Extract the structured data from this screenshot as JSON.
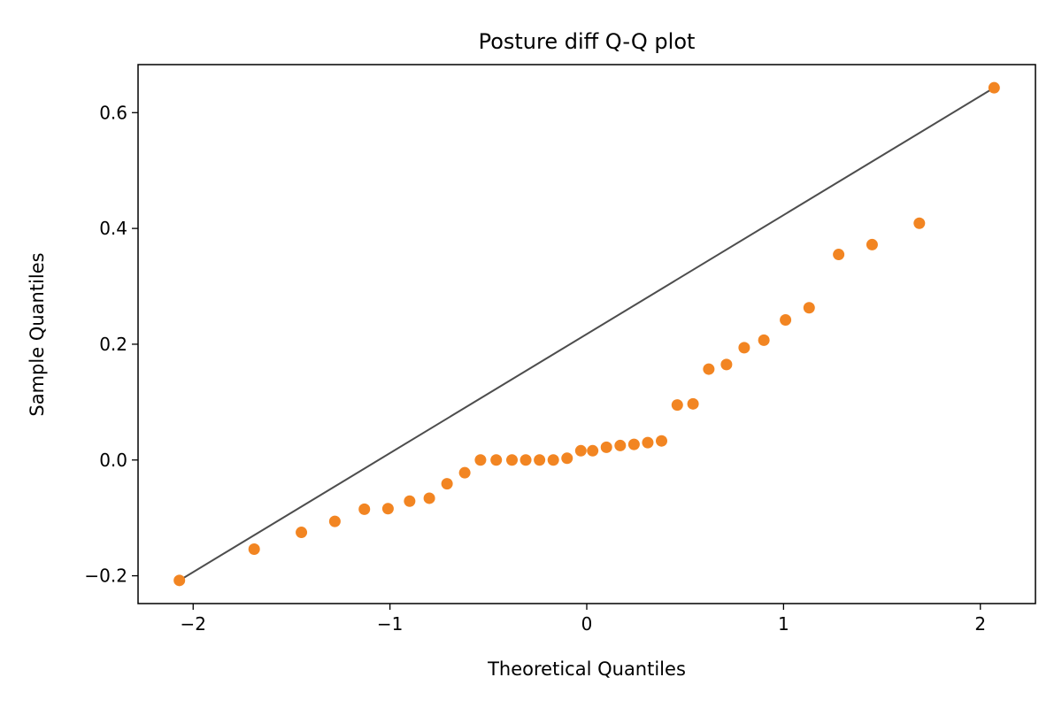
{
  "chart_data": {
    "type": "scatter",
    "title": "Posture diff Q-Q plot",
    "xlabel": "Theoretical Quantiles",
    "ylabel": "Sample Quantiles",
    "xlim": [
      -2.28,
      2.28
    ],
    "ylim": [
      -0.248,
      0.683
    ],
    "xticks": [
      -2,
      -1,
      0,
      1,
      2
    ],
    "xtick_labels": [
      "−2",
      "−1",
      "0",
      "1",
      "2"
    ],
    "yticks": [
      -0.2,
      0.0,
      0.2,
      0.4,
      0.6
    ],
    "ytick_labels": [
      "−0.2",
      "0.0",
      "0.2",
      "0.4",
      "0.6"
    ],
    "colors": {
      "points": "#f28522",
      "line": "#4d4d4d"
    },
    "reference_line": {
      "x": [
        -2.07,
        2.07
      ],
      "y": [
        -0.208,
        0.643
      ]
    },
    "series": [
      {
        "name": "Posture diff",
        "x": [
          -2.07,
          -1.69,
          -1.45,
          -1.28,
          -1.13,
          -1.01,
          -0.9,
          -0.8,
          -0.71,
          -0.62,
          -0.54,
          -0.46,
          -0.38,
          -0.31,
          -0.24,
          -0.17,
          -0.1,
          -0.03,
          0.03,
          0.1,
          0.17,
          0.24,
          0.31,
          0.38,
          0.46,
          0.54,
          0.62,
          0.71,
          0.8,
          0.9,
          1.01,
          1.13,
          1.28,
          1.45,
          1.69,
          2.07
        ],
        "y": [
          -0.208,
          -0.154,
          -0.125,
          -0.106,
          -0.085,
          -0.084,
          -0.071,
          -0.066,
          -0.041,
          -0.022,
          0.0,
          0.0,
          0.0,
          0.0,
          0.0,
          0.0,
          0.003,
          0.016,
          0.016,
          0.022,
          0.025,
          0.027,
          0.03,
          0.033,
          0.095,
          0.097,
          0.157,
          0.165,
          0.194,
          0.207,
          0.242,
          0.263,
          0.355,
          0.372,
          0.409,
          0.643
        ]
      }
    ]
  }
}
